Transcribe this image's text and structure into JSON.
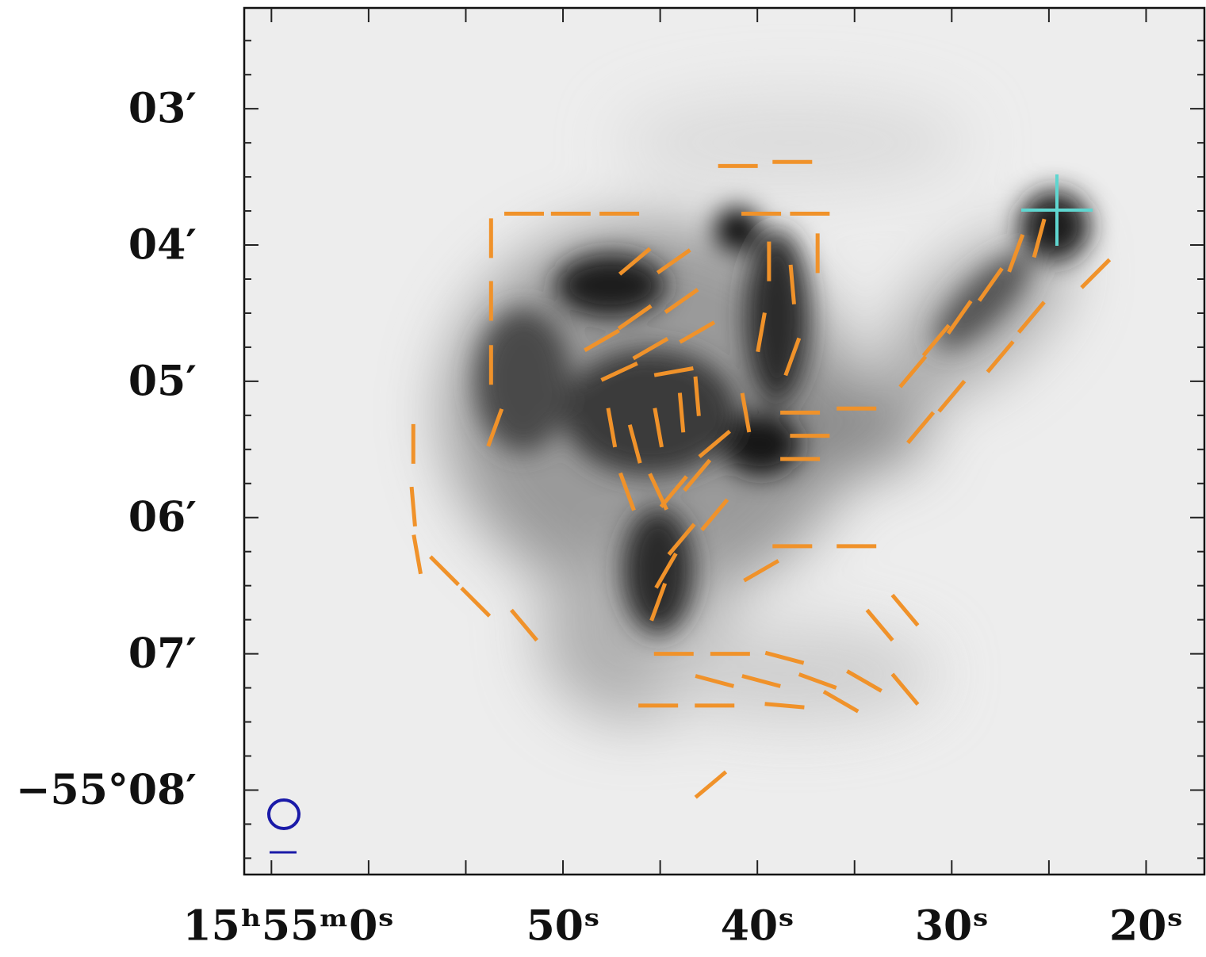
{
  "chart_data": {
    "type": "polarization-map",
    "xticks": [
      {
        "value": 60,
        "label": "15ʰ55ᵐ0ˢ"
      },
      {
        "value": 50,
        "label": "50ˢ"
      },
      {
        "value": 40,
        "label": "40ˢ"
      },
      {
        "value": 30,
        "label": "30ˢ"
      },
      {
        "value": 20,
        "label": "20ˢ"
      }
    ],
    "yticks": [
      {
        "value": 3,
        "label": "03′"
      },
      {
        "value": 4,
        "label": "04′"
      },
      {
        "value": 5,
        "label": "05′"
      },
      {
        "value": 6,
        "label": "06′"
      },
      {
        "value": 7,
        "label": "07′"
      },
      {
        "value": 8,
        "label": "−55°08′"
      }
    ],
    "xlim": [
      66.4,
      17.0
    ],
    "ylim": [
      2.26,
      8.62
    ],
    "vectors": {
      "color": "#f0922a",
      "x": [
        52.0,
        49.6,
        47.1,
        41.0,
        38.2,
        39.8,
        37.3,
        53.7,
        53.7,
        53.7,
        53.5,
        57.7,
        57.7,
        57.5,
        56.1,
        54.5,
        52.0,
        46.3,
        44.3,
        43.9,
        46.3,
        48.0,
        45.5,
        43.1,
        47.1,
        44.3,
        47.5,
        46.3,
        45.1,
        43.9,
        43.1,
        46.7,
        45.1,
        44.3,
        43.1,
        43.9,
        42.2,
        44.7,
        45.1,
        42.2,
        39.4,
        38.2,
        36.9,
        39.8,
        38.2,
        40.6,
        37.8,
        37.3,
        37.8,
        34.9,
        32.0,
        30.8,
        29.6,
        28.0,
        26.7,
        25.5,
        31.6,
        30.0,
        27.5,
        25.9,
        22.6,
        44.3,
        41.4,
        38.6,
        42.2,
        39.8,
        36.9,
        34.5,
        45.1,
        42.2,
        38.6,
        35.7,
        32.4,
        33.7,
        32.4,
        38.2,
        34.9,
        39.8,
        42.4
      ],
      "y": [
        3.77,
        3.77,
        3.77,
        3.42,
        3.39,
        3.77,
        3.77,
        3.95,
        4.41,
        4.88,
        5.34,
        5.46,
        5.92,
        6.27,
        6.39,
        6.62,
        6.79,
        4.12,
        4.12,
        4.41,
        4.53,
        4.7,
        4.76,
        4.64,
        4.93,
        4.93,
        5.34,
        5.46,
        5.34,
        5.23,
        5.11,
        5.81,
        5.81,
        5.81,
        5.69,
        6.16,
        5.98,
        6.39,
        6.62,
        5.46,
        4.12,
        4.29,
        4.06,
        4.64,
        4.82,
        5.23,
        5.23,
        5.4,
        5.57,
        5.2,
        4.93,
        4.7,
        4.53,
        4.29,
        4.06,
        3.95,
        5.34,
        5.11,
        4.82,
        4.53,
        4.21,
        7.0,
        7.0,
        7.03,
        7.2,
        7.2,
        7.2,
        7.2,
        7.38,
        7.38,
        7.38,
        7.35,
        7.26,
        6.79,
        6.68,
        6.21,
        6.21,
        6.39,
        7.96
      ],
      "angle": [
        90,
        90,
        90,
        90,
        90,
        90,
        90,
        0,
        0,
        0,
        -20,
        0,
        5,
        10,
        45,
        45,
        40,
        -50,
        -55,
        -55,
        -55,
        -60,
        -60,
        -60,
        -65,
        -80,
        10,
        15,
        10,
        5,
        5,
        20,
        25,
        -40,
        -40,
        -40,
        -40,
        -30,
        -20,
        -50,
        0,
        5,
        0,
        -10,
        -20,
        10,
        90,
        90,
        90,
        90,
        -40,
        -40,
        -35,
        -35,
        -20,
        -15,
        -40,
        -40,
        -40,
        -40,
        -45,
        90,
        90,
        75,
        75,
        75,
        70,
        60,
        90,
        90,
        85,
        60,
        40,
        40,
        40,
        90,
        90,
        -60,
        -50
      ]
    }
  }
}
